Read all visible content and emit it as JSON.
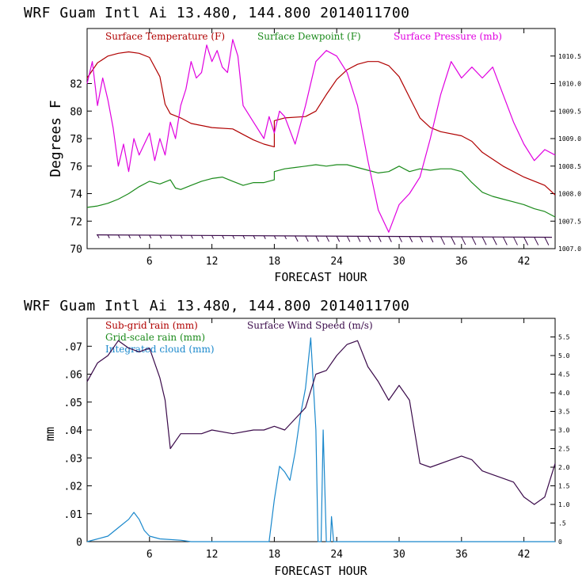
{
  "chart_data": [
    {
      "type": "line",
      "title": "WRF   Guam Intl Ai   13.480, 144.800  2014011700",
      "xlabel": "FORECAST HOUR",
      "ylabel": "Degrees F",
      "xlim": [
        0,
        45
      ],
      "ylim": [
        70,
        86
      ],
      "x_ticks": [
        "6",
        "12",
        "18",
        "24",
        "30",
        "36",
        "42"
      ],
      "y_ticks": [
        "70",
        "72",
        "74",
        "76",
        "78",
        "80",
        "82"
      ],
      "right_ticks": [
        "1007.0",
        "1007.5",
        "1008.0",
        "1008.5",
        "1009.0",
        "1009.5",
        "1010.0",
        "1010.5"
      ],
      "right_range": [
        1007.0,
        1011.0
      ],
      "series": [
        {
          "name": "Surface Temperature (F)",
          "color": "#b00000",
          "axis": "left",
          "points": [
            [
              0,
              82.4
            ],
            [
              1,
              83.5
            ],
            [
              2,
              84.0
            ],
            [
              3,
              84.2
            ],
            [
              4,
              84.3
            ],
            [
              5,
              84.2
            ],
            [
              6,
              83.9
            ],
            [
              7,
              82.5
            ],
            [
              7.5,
              80.5
            ],
            [
              8,
              79.8
            ],
            [
              9,
              79.5
            ],
            [
              10,
              79.1
            ],
            [
              12,
              78.8
            ],
            [
              14,
              78.7
            ],
            [
              15,
              78.3
            ],
            [
              16,
              77.9
            ],
            [
              17,
              77.6
            ],
            [
              18,
              77.4
            ],
            [
              18,
              79.3
            ],
            [
              19,
              79.5
            ],
            [
              21,
              79.6
            ],
            [
              22,
              80.0
            ],
            [
              23,
              81.2
            ],
            [
              24,
              82.3
            ],
            [
              25,
              83.0
            ],
            [
              26,
              83.4
            ],
            [
              27,
              83.6
            ],
            [
              28,
              83.6
            ],
            [
              29,
              83.3
            ],
            [
              30,
              82.5
            ],
            [
              31,
              81.0
            ],
            [
              32,
              79.5
            ],
            [
              33,
              78.8
            ],
            [
              34,
              78.5
            ],
            [
              36,
              78.2
            ],
            [
              37,
              77.8
            ],
            [
              38,
              77.0
            ],
            [
              40,
              76.0
            ],
            [
              42,
              75.2
            ],
            [
              44,
              74.6
            ],
            [
              45,
              73.9
            ]
          ]
        },
        {
          "name": "Surface Dewpoint (F)",
          "color": "#1a8a1a",
          "axis": "left",
          "points": [
            [
              0,
              73.0
            ],
            [
              1,
              73.1
            ],
            [
              2,
              73.3
            ],
            [
              3,
              73.6
            ],
            [
              4,
              74.0
            ],
            [
              5,
              74.5
            ],
            [
              6,
              74.9
            ],
            [
              7,
              74.7
            ],
            [
              8,
              75.0
            ],
            [
              8.5,
              74.4
            ],
            [
              9,
              74.3
            ],
            [
              10,
              74.6
            ],
            [
              11,
              74.9
            ],
            [
              12,
              75.1
            ],
            [
              13,
              75.2
            ],
            [
              14,
              74.9
            ],
            [
              15,
              74.6
            ],
            [
              16,
              74.8
            ],
            [
              17,
              74.8
            ],
            [
              18,
              75.0
            ],
            [
              18,
              75.6
            ],
            [
              19,
              75.8
            ],
            [
              20,
              75.9
            ],
            [
              21,
              76.0
            ],
            [
              22,
              76.1
            ],
            [
              23,
              76.0
            ],
            [
              24,
              76.1
            ],
            [
              25,
              76.1
            ],
            [
              26,
              75.9
            ],
            [
              27,
              75.7
            ],
            [
              28,
              75.5
            ],
            [
              29,
              75.6
            ],
            [
              30,
              76.0
            ],
            [
              31,
              75.6
            ],
            [
              32,
              75.8
            ],
            [
              33,
              75.7
            ],
            [
              34,
              75.8
            ],
            [
              35,
              75.8
            ],
            [
              36,
              75.6
            ],
            [
              37,
              74.8
            ],
            [
              38,
              74.1
            ],
            [
              39,
              73.8
            ],
            [
              40,
              73.6
            ],
            [
              41,
              73.4
            ],
            [
              42,
              73.2
            ],
            [
              43,
              72.9
            ],
            [
              44,
              72.7
            ],
            [
              45,
              72.3
            ]
          ]
        },
        {
          "name": "Surface Pressure (mb)",
          "color": "#e000e0",
          "axis": "right",
          "points": [
            [
              0,
              1010.0
            ],
            [
              0.5,
              1010.4
            ],
            [
              1,
              1009.6
            ],
            [
              1.5,
              1010.1
            ],
            [
              2,
              1009.7
            ],
            [
              2.5,
              1009.2
            ],
            [
              3,
              1008.5
            ],
            [
              3.5,
              1008.9
            ],
            [
              4,
              1008.4
            ],
            [
              4.5,
              1009.0
            ],
            [
              5,
              1008.7
            ],
            [
              6,
              1009.1
            ],
            [
              6.5,
              1008.6
            ],
            [
              7,
              1009.0
            ],
            [
              7.5,
              1008.7
            ],
            [
              8,
              1009.3
            ],
            [
              8.5,
              1009.0
            ],
            [
              9,
              1009.6
            ],
            [
              9.5,
              1009.9
            ],
            [
              10,
              1010.4
            ],
            [
              10.5,
              1010.1
            ],
            [
              11,
              1010.2
            ],
            [
              11.5,
              1010.7
            ],
            [
              12,
              1010.4
            ],
            [
              12.5,
              1010.6
            ],
            [
              13,
              1010.3
            ],
            [
              13.5,
              1010.2
            ],
            [
              14,
              1010.8
            ],
            [
              14.5,
              1010.5
            ],
            [
              15,
              1009.6
            ],
            [
              16,
              1009.3
            ],
            [
              17,
              1009.0
            ],
            [
              17.5,
              1009.4
            ],
            [
              18,
              1009.1
            ],
            [
              18.5,
              1009.5
            ],
            [
              19,
              1009.4
            ],
            [
              20,
              1008.9
            ],
            [
              21,
              1009.6
            ],
            [
              22,
              1010.4
            ],
            [
              23,
              1010.6
            ],
            [
              24,
              1010.5
            ],
            [
              25,
              1010.2
            ],
            [
              26,
              1009.6
            ],
            [
              27,
              1008.6
            ],
            [
              28,
              1007.7
            ],
            [
              29,
              1007.3
            ],
            [
              30,
              1007.8
            ],
            [
              31,
              1008.0
            ],
            [
              32,
              1008.3
            ],
            [
              33,
              1009.0
            ],
            [
              34,
              1009.8
            ],
            [
              35,
              1010.4
            ],
            [
              36,
              1010.1
            ],
            [
              37,
              1010.3
            ],
            [
              38,
              1010.1
            ],
            [
              39,
              1010.3
            ],
            [
              40,
              1009.8
            ],
            [
              41,
              1009.3
            ],
            [
              42,
              1008.9
            ],
            [
              43,
              1008.6
            ],
            [
              44,
              1008.8
            ],
            [
              45,
              1008.7
            ]
          ]
        }
      ],
      "wind_barbs": "row of wind barbs along y=71 (speeds shown by flag length)"
    },
    {
      "type": "line",
      "title": "WRF   Guam Intl Ai   13.480, 144.800  2014011700",
      "xlabel": "FORECAST HOUR",
      "ylabel": "mm",
      "xlim": [
        0,
        45
      ],
      "ylim": [
        0,
        0.08
      ],
      "x_ticks": [
        "6",
        "12",
        "18",
        "24",
        "30",
        "36",
        "42"
      ],
      "y_ticks": [
        "0",
        ".01",
        ".02",
        ".03",
        ".04",
        ".05",
        ".06",
        ".07"
      ],
      "right_ticks": [
        "0",
        ".5",
        "1.0",
        "1.5",
        "2.0",
        "2.5",
        "3.0",
        "3.5",
        "4.0",
        "4.5",
        "5.0",
        "5.5"
      ],
      "right_range": [
        0,
        6.0
      ],
      "series": [
        {
          "name": "Sub-grid rain (mm)",
          "color": "#b00000",
          "axis": "left",
          "points": []
        },
        {
          "name": "Grid-scale rain (mm)",
          "color": "#1a8a1a",
          "axis": "left",
          "points": []
        },
        {
          "name": "Integrated cloud (mm)",
          "color": "#1a88cc",
          "axis": "left",
          "points": [
            [
              0,
              0
            ],
            [
              2,
              0.002
            ],
            [
              3,
              0.005
            ],
            [
              4,
              0.008
            ],
            [
              4.5,
              0.0105
            ],
            [
              5,
              0.008
            ],
            [
              5.5,
              0.004
            ],
            [
              6,
              0.002
            ],
            [
              7,
              0.001
            ],
            [
              9,
              0.0005
            ],
            [
              10,
              0
            ],
            [
              17.5,
              0
            ],
            [
              18,
              0.015
            ],
            [
              18.5,
              0.027
            ],
            [
              19,
              0.025
            ],
            [
              19.5,
              0.022
            ],
            [
              20,
              0.032
            ],
            [
              20.5,
              0.045
            ],
            [
              21,
              0.055
            ],
            [
              21.5,
              0.073
            ],
            [
              22,
              0.04
            ],
            [
              22.2,
              0.0
            ],
            [
              22.5,
              0.0
            ],
            [
              22.7,
              0.04
            ],
            [
              23,
              0.0
            ],
            [
              23.4,
              0.0
            ],
            [
              23.5,
              0.009
            ],
            [
              23.7,
              0
            ],
            [
              45,
              0
            ]
          ]
        },
        {
          "name": "Surface Wind Speed (m/s)",
          "color": "#3a0a4a",
          "axis": "right",
          "points": [
            [
              0,
              4.3
            ],
            [
              1,
              4.8
            ],
            [
              2,
              5.0
            ],
            [
              3,
              5.4
            ],
            [
              4,
              5.2
            ],
            [
              5,
              5.1
            ],
            [
              6,
              5.2
            ],
            [
              7,
              4.4
            ],
            [
              7.5,
              3.8
            ],
            [
              8,
              2.5
            ],
            [
              9,
              2.9
            ],
            [
              10,
              2.9
            ],
            [
              11,
              2.9
            ],
            [
              12,
              3.0
            ],
            [
              14,
              2.9
            ],
            [
              16,
              3.0
            ],
            [
              17,
              3.0
            ],
            [
              18,
              3.1
            ],
            [
              19,
              3.0
            ],
            [
              20,
              3.3
            ],
            [
              21,
              3.6
            ],
            [
              22,
              4.5
            ],
            [
              23,
              4.6
            ],
            [
              24,
              5.0
            ],
            [
              25,
              5.3
            ],
            [
              26,
              5.4
            ],
            [
              27,
              4.7
            ],
            [
              28,
              4.3
            ],
            [
              29,
              3.8
            ],
            [
              30,
              4.2
            ],
            [
              31,
              3.8
            ],
            [
              32,
              2.1
            ],
            [
              33,
              2.0
            ],
            [
              35,
              2.2
            ],
            [
              36,
              2.3
            ],
            [
              37,
              2.2
            ],
            [
              38,
              1.9
            ],
            [
              39,
              1.8
            ],
            [
              40,
              1.7
            ],
            [
              41,
              1.6
            ],
            [
              42,
              1.2
            ],
            [
              43,
              1.0
            ],
            [
              44,
              1.2
            ],
            [
              45,
              2.1
            ]
          ]
        }
      ]
    }
  ]
}
